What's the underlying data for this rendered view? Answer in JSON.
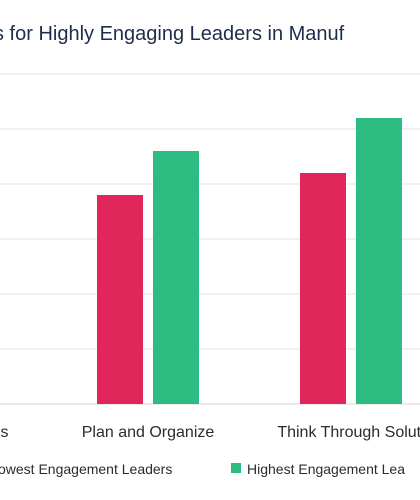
{
  "chart_data": {
    "type": "bar",
    "title": "s for Highly Engaging Leaders in Manuf",
    "categories": [
      "es",
      "Plan and Organize",
      "Think Through Soluti"
    ],
    "series": [
      {
        "name": "owest Engagement Leaders",
        "color": "#e0265a",
        "values": [
          null,
          3.8,
          4.2
        ]
      },
      {
        "name": "Highest Engagement Lea",
        "color": "#2dbd82",
        "values": [
          null,
          4.6,
          5.2
        ]
      }
    ],
    "ylim": [
      0,
      6
    ],
    "grid": true,
    "legend_position": "bottom"
  }
}
